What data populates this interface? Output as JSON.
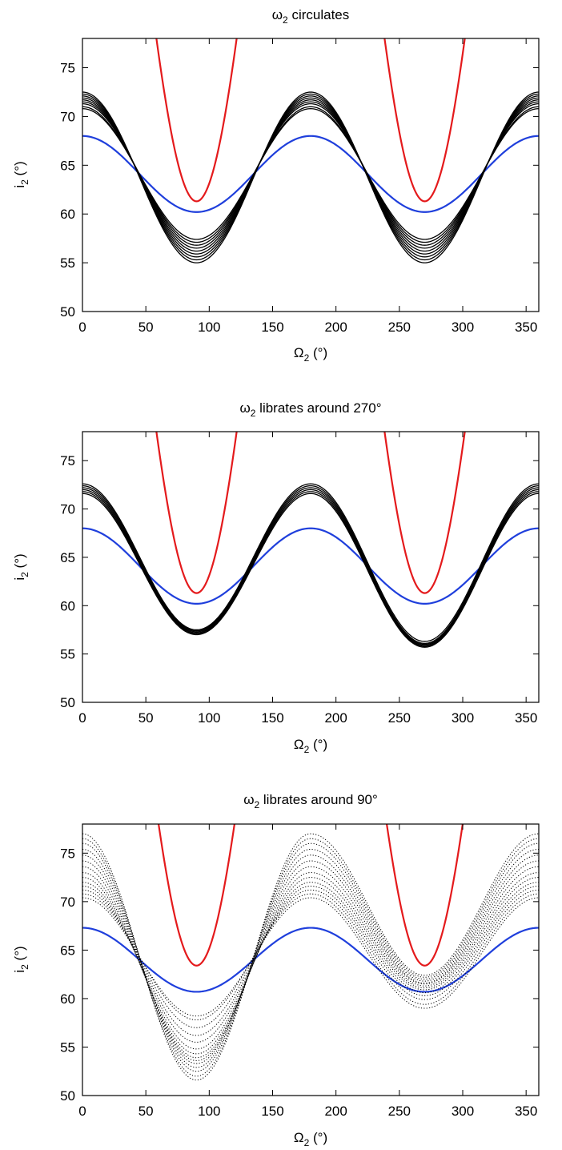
{
  "chart_data": [
    {
      "type": "line",
      "title_sym": "ω",
      "title_sub": "2",
      "title_rest": " circulates",
      "xlabel_sym": "Ω",
      "xlabel_sub": "2",
      "xlabel_rest": " (°)",
      "ylabel_sym": "i",
      "ylabel_sub": "2",
      "ylabel_rest": " (°)",
      "xlim": [
        0,
        360
      ],
      "ylim": [
        50,
        78
      ],
      "xticks": [
        0,
        50,
        100,
        150,
        200,
        250,
        300,
        350
      ],
      "yticks": [
        50,
        55,
        60,
        65,
        70,
        75
      ],
      "grid": false,
      "series": [
        {
          "kind": "cos2",
          "color": "#e41a1c",
          "center": 91.6,
          "amplitude": 30.3,
          "lineWidth": 2.2
        },
        {
          "kind": "cos2",
          "color": "#1f3fdc",
          "center": 64.1,
          "amplitude": 3.9,
          "lineWidth": 2.2
        },
        {
          "kind": "band",
          "color": "#000000",
          "style": "solid",
          "orbits": [
            {
              "max": 70.8,
              "min90": 57.4,
              "min270": 57.4
            },
            {
              "max": 71.0,
              "min90": 57.1,
              "min270": 57.1
            },
            {
              "max": 71.3,
              "min90": 56.8,
              "min270": 56.8
            },
            {
              "max": 71.5,
              "min90": 56.5,
              "min270": 56.5
            },
            {
              "max": 71.7,
              "min90": 56.2,
              "min270": 56.2
            },
            {
              "max": 71.9,
              "min90": 55.9,
              "min270": 55.9
            },
            {
              "max": 72.1,
              "min90": 55.6,
              "min270": 55.6
            },
            {
              "max": 72.3,
              "min90": 55.3,
              "min270": 55.3
            },
            {
              "max": 72.5,
              "min90": 55.0,
              "min270": 55.0
            }
          ]
        }
      ]
    },
    {
      "type": "line",
      "title_sym": "ω",
      "title_sub": "2",
      "title_rest": " librates around 270°",
      "xlabel_sym": "Ω",
      "xlabel_sub": "2",
      "xlabel_rest": " (°)",
      "ylabel_sym": "i",
      "ylabel_sub": "2",
      "ylabel_rest": " (°)",
      "xlim": [
        0,
        360
      ],
      "ylim": [
        50,
        78
      ],
      "xticks": [
        0,
        50,
        100,
        150,
        200,
        250,
        300,
        350
      ],
      "yticks": [
        50,
        55,
        60,
        65,
        70,
        75
      ],
      "grid": false,
      "series": [
        {
          "kind": "cos2",
          "color": "#e41a1c",
          "center": 91.6,
          "amplitude": 30.3,
          "lineWidth": 2.2
        },
        {
          "kind": "cos2",
          "color": "#1f3fdc",
          "center": 64.1,
          "amplitude": 3.9,
          "lineWidth": 2.2
        },
        {
          "kind": "band",
          "color": "#000000",
          "style": "solid",
          "orbits": [
            {
              "max": 71.6,
              "min90": 57.0,
              "min270": 55.7
            },
            {
              "max": 71.8,
              "min90": 57.1,
              "min270": 55.8
            },
            {
              "max": 72.0,
              "min90": 57.2,
              "min270": 55.9
            },
            {
              "max": 72.2,
              "min90": 57.3,
              "min270": 56.0
            },
            {
              "max": 72.4,
              "min90": 57.4,
              "min270": 56.1
            },
            {
              "max": 72.6,
              "min90": 57.5,
              "min270": 56.3
            }
          ]
        }
      ]
    },
    {
      "type": "line",
      "title_sym": "ω",
      "title_sub": "2",
      "title_rest": " librates around 90°",
      "xlabel_sym": "Ω",
      "xlabel_sub": "2",
      "xlabel_rest": " (°)",
      "ylabel_sym": "i",
      "ylabel_sub": "2",
      "ylabel_rest": " (°)",
      "xlim": [
        0,
        360
      ],
      "ylim": [
        50,
        78
      ],
      "xticks": [
        0,
        50,
        100,
        150,
        200,
        250,
        300,
        350
      ],
      "yticks": [
        50,
        55,
        60,
        65,
        70,
        75
      ],
      "grid": false,
      "series": [
        {
          "kind": "cos2",
          "color": "#e41a1c",
          "center": 92.7,
          "amplitude": 29.3,
          "lineWidth": 2.2
        },
        {
          "kind": "cos2",
          "color": "#1f3fdc",
          "center": 64.0,
          "amplitude": 3.3,
          "lineWidth": 2.2
        },
        {
          "kind": "band",
          "color": "#000000",
          "style": "dotted",
          "orbits": [
            {
              "max": 77.0,
              "min90": 51.6,
              "min270": 62.4
            },
            {
              "max": 76.5,
              "min90": 52.0,
              "min270": 62.2
            },
            {
              "max": 76.0,
              "min90": 52.5,
              "min270": 62.0
            },
            {
              "max": 75.4,
              "min90": 52.9,
              "min270": 61.8
            },
            {
              "max": 74.8,
              "min90": 53.3,
              "min270": 61.6
            },
            {
              "max": 74.2,
              "min90": 53.6,
              "min270": 61.5
            },
            {
              "max": 73.6,
              "min90": 53.9,
              "min270": 61.3
            },
            {
              "max": 73.0,
              "min90": 54.3,
              "min270": 61.1
            },
            {
              "max": 72.5,
              "min90": 54.8,
              "min270": 60.9
            },
            {
              "max": 72.0,
              "min90": 55.5,
              "min270": 60.6
            },
            {
              "max": 71.6,
              "min90": 56.2,
              "min270": 60.3
            },
            {
              "max": 71.2,
              "min90": 57.0,
              "min270": 59.9
            },
            {
              "max": 70.8,
              "min90": 57.8,
              "min270": 59.4
            },
            {
              "max": 70.4,
              "min90": 58.2,
              "min270": 59.0
            }
          ]
        }
      ]
    }
  ]
}
